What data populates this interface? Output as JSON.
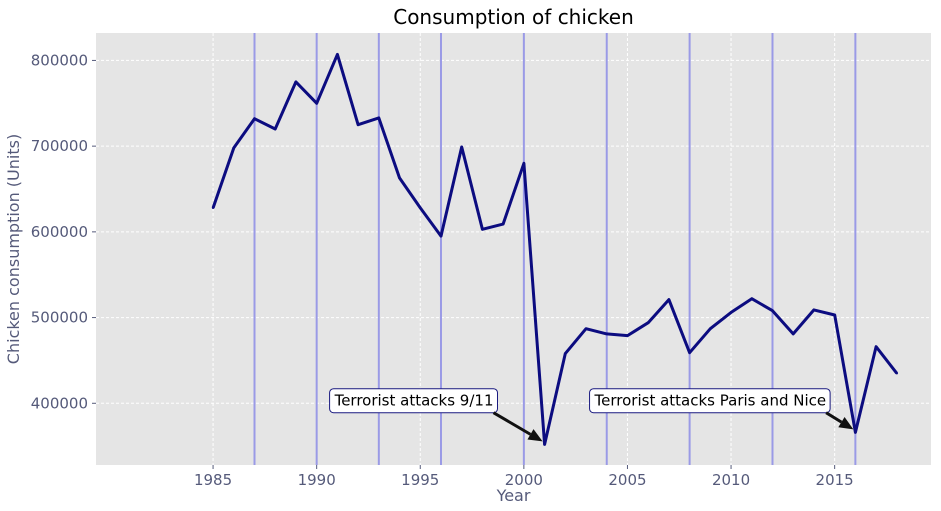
{
  "chart_data": {
    "type": "line",
    "title": "Consumption of chicken",
    "xlabel": "Year",
    "ylabel": "Chicken consumption (Units)",
    "xlim": [
      1979.35,
      2019.65
    ],
    "ylim": [
      328000,
      832000
    ],
    "xticks": [
      1985,
      1990,
      1995,
      2000,
      2005,
      2010,
      2015
    ],
    "yticks": [
      400000,
      500000,
      600000,
      700000,
      800000
    ],
    "grid": true,
    "series": [
      {
        "color": "#0c0c80",
        "x": [
          1985,
          1986,
          1987,
          1988,
          1989,
          1990,
          1991,
          1992,
          1993,
          1994,
          1995,
          1996,
          1997,
          1998,
          1999,
          2000,
          2001,
          2002,
          2003,
          2004,
          2005,
          2006,
          2007,
          2008,
          2009,
          2010,
          2011,
          2012,
          2013,
          2014,
          2015,
          2016,
          2017,
          2018
        ],
        "y": [
          628000,
          698000,
          732000,
          720000,
          775000,
          750000,
          807000,
          725000,
          733000,
          663000,
          628000,
          595000,
          699000,
          603000,
          609000,
          680000,
          352000,
          458000,
          487000,
          481000,
          479000,
          494000,
          521000,
          459000,
          487000,
          506000,
          522000,
          508000,
          481000,
          509000,
          503000,
          366000,
          466000,
          435000
        ]
      }
    ],
    "vlines": {
      "color": "#9a9ae6",
      "x": [
        1987,
        1990,
        1993,
        1996,
        2000,
        2004,
        2008,
        2012,
        2016
      ]
    },
    "annotations": [
      {
        "text": "Terrorist attacks 9/11",
        "x": 2001,
        "y": 352000,
        "text_x": 1994.7,
        "text_y": 403000
      },
      {
        "text": "Terrorist attacks Paris and Nice",
        "x": 2016,
        "y": 366000,
        "text_x": 2009.0,
        "text_y": 403000
      }
    ]
  }
}
